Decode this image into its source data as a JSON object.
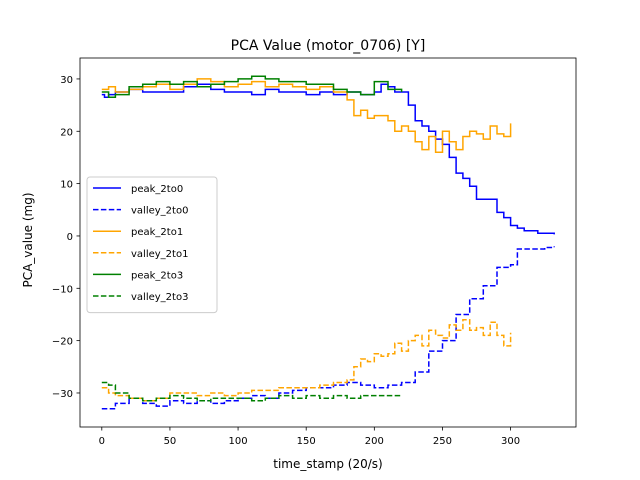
{
  "chart_data": {
    "type": "line",
    "title": "PCA Value (motor_0706) [Y]",
    "xlabel": "time_stamp (20/s)",
    "ylabel": "PCA_value (mg)",
    "xlim": [
      -16,
      348
    ],
    "ylim": [
      -36.5,
      34
    ],
    "xticks": [
      0,
      50,
      100,
      150,
      200,
      250,
      300
    ],
    "yticks": [
      -30,
      -20,
      -10,
      0,
      10,
      20,
      30
    ],
    "legend_position": "center-left",
    "series": [
      {
        "name": "peak_2to0",
        "color": "#0000ff",
        "dash": false,
        "points": [
          [
            0,
            27
          ],
          [
            2,
            26.5
          ],
          [
            5,
            27
          ],
          [
            10,
            27.5
          ],
          [
            20,
            28
          ],
          [
            30,
            27.5
          ],
          [
            40,
            27.5
          ],
          [
            50,
            27.5
          ],
          [
            60,
            28.5
          ],
          [
            70,
            29
          ],
          [
            80,
            28
          ],
          [
            90,
            27.5
          ],
          [
            100,
            27.5
          ],
          [
            110,
            27
          ],
          [
            120,
            28
          ],
          [
            130,
            27.5
          ],
          [
            140,
            27.5
          ],
          [
            150,
            27
          ],
          [
            160,
            27.5
          ],
          [
            170,
            27
          ],
          [
            180,
            27.5
          ],
          [
            190,
            27
          ],
          [
            200,
            27.5
          ],
          [
            205,
            29
          ],
          [
            210,
            28.5
          ],
          [
            215,
            27.5
          ],
          [
            220,
            27.5
          ],
          [
            225,
            25
          ],
          [
            230,
            22
          ],
          [
            235,
            21
          ],
          [
            240,
            20
          ],
          [
            245,
            18.5
          ],
          [
            250,
            17.5
          ],
          [
            255,
            15
          ],
          [
            260,
            12
          ],
          [
            265,
            11
          ],
          [
            270,
            9.5
          ],
          [
            275,
            7
          ],
          [
            285,
            7
          ],
          [
            290,
            4.5
          ],
          [
            295,
            3.5
          ],
          [
            300,
            2
          ],
          [
            305,
            1.5
          ],
          [
            310,
            1
          ],
          [
            320,
            0.5
          ],
          [
            332,
            0.3
          ]
        ]
      },
      {
        "name": "valley_2to0",
        "color": "#0000ff",
        "dash": true,
        "points": [
          [
            0,
            -33
          ],
          [
            5,
            -33
          ],
          [
            10,
            -32
          ],
          [
            20,
            -31
          ],
          [
            30,
            -32
          ],
          [
            40,
            -32.5
          ],
          [
            50,
            -31.5
          ],
          [
            60,
            -32
          ],
          [
            70,
            -31.5
          ],
          [
            80,
            -32
          ],
          [
            90,
            -31.5
          ],
          [
            100,
            -31
          ],
          [
            110,
            -30.5
          ],
          [
            120,
            -31
          ],
          [
            130,
            -30
          ],
          [
            140,
            -29.5
          ],
          [
            150,
            -29
          ],
          [
            160,
            -29
          ],
          [
            170,
            -28.5
          ],
          [
            180,
            -28
          ],
          [
            190,
            -28.5
          ],
          [
            200,
            -29
          ],
          [
            210,
            -28.5
          ],
          [
            220,
            -28
          ],
          [
            230,
            -26
          ],
          [
            240,
            -22
          ],
          [
            250,
            -20
          ],
          [
            260,
            -15
          ],
          [
            270,
            -12
          ],
          [
            280,
            -9.5
          ],
          [
            290,
            -6
          ],
          [
            300,
            -5.5
          ],
          [
            305,
            -2.5
          ],
          [
            315,
            -2.5
          ],
          [
            325,
            -2.2
          ],
          [
            332,
            -2
          ]
        ]
      },
      {
        "name": "peak_2to1",
        "color": "#ffa500",
        "dash": false,
        "points": [
          [
            0,
            28
          ],
          [
            5,
            28.5
          ],
          [
            10,
            27.5
          ],
          [
            20,
            28
          ],
          [
            30,
            28.5
          ],
          [
            40,
            29
          ],
          [
            50,
            28
          ],
          [
            60,
            29
          ],
          [
            70,
            30
          ],
          [
            80,
            29.5
          ],
          [
            90,
            28.5
          ],
          [
            100,
            29
          ],
          [
            110,
            29.5
          ],
          [
            120,
            28.5
          ],
          [
            130,
            29
          ],
          [
            140,
            28.5
          ],
          [
            150,
            28
          ],
          [
            160,
            28.5
          ],
          [
            170,
            27.5
          ],
          [
            180,
            26
          ],
          [
            185,
            23
          ],
          [
            190,
            24
          ],
          [
            195,
            22.5
          ],
          [
            200,
            23
          ],
          [
            210,
            22
          ],
          [
            215,
            20
          ],
          [
            220,
            21
          ],
          [
            225,
            20
          ],
          [
            230,
            18
          ],
          [
            235,
            16.5
          ],
          [
            240,
            19
          ],
          [
            245,
            16
          ],
          [
            250,
            20
          ],
          [
            255,
            18
          ],
          [
            260,
            16.5
          ],
          [
            265,
            19
          ],
          [
            270,
            20
          ],
          [
            275,
            19.5
          ],
          [
            280,
            18.5
          ],
          [
            285,
            21
          ],
          [
            290,
            19.5
          ],
          [
            295,
            19
          ],
          [
            300,
            21.5
          ]
        ]
      },
      {
        "name": "valley_2to1",
        "color": "#ffa500",
        "dash": true,
        "points": [
          [
            0,
            -29
          ],
          [
            5,
            -30
          ],
          [
            10,
            -30.5
          ],
          [
            20,
            -31
          ],
          [
            30,
            -31.5
          ],
          [
            40,
            -31
          ],
          [
            50,
            -30
          ],
          [
            60,
            -30
          ],
          [
            70,
            -30.5
          ],
          [
            80,
            -30
          ],
          [
            90,
            -30.5
          ],
          [
            100,
            -30
          ],
          [
            110,
            -29.5
          ],
          [
            120,
            -29.5
          ],
          [
            130,
            -29
          ],
          [
            140,
            -29
          ],
          [
            150,
            -29
          ],
          [
            160,
            -28.5
          ],
          [
            170,
            -28
          ],
          [
            180,
            -27.5
          ],
          [
            185,
            -25
          ],
          [
            190,
            -23.5
          ],
          [
            195,
            -24
          ],
          [
            200,
            -22.5
          ],
          [
            205,
            -23
          ],
          [
            210,
            -22.5
          ],
          [
            215,
            -20.5
          ],
          [
            220,
            -22
          ],
          [
            225,
            -20
          ],
          [
            230,
            -19
          ],
          [
            235,
            -21
          ],
          [
            240,
            -18
          ],
          [
            245,
            -19
          ],
          [
            250,
            -19.5
          ],
          [
            255,
            -17
          ],
          [
            260,
            -18
          ],
          [
            265,
            -16
          ],
          [
            270,
            -18
          ],
          [
            275,
            -17.5
          ],
          [
            280,
            -19
          ],
          [
            285,
            -16.5
          ],
          [
            290,
            -19
          ],
          [
            295,
            -21
          ],
          [
            300,
            -18.5
          ]
        ]
      },
      {
        "name": "peak_2to3",
        "color": "#008000",
        "dash": false,
        "points": [
          [
            0,
            27.5
          ],
          [
            5,
            26.5
          ],
          [
            10,
            27
          ],
          [
            20,
            28.5
          ],
          [
            30,
            29
          ],
          [
            40,
            29.5
          ],
          [
            50,
            29
          ],
          [
            60,
            29.5
          ],
          [
            70,
            28.5
          ],
          [
            80,
            29
          ],
          [
            90,
            29.5
          ],
          [
            100,
            30
          ],
          [
            110,
            30.5
          ],
          [
            120,
            30
          ],
          [
            130,
            29.5
          ],
          [
            140,
            29.5
          ],
          [
            150,
            29
          ],
          [
            160,
            29
          ],
          [
            170,
            28
          ],
          [
            180,
            27.5
          ],
          [
            190,
            27
          ],
          [
            200,
            29.5
          ],
          [
            210,
            28
          ],
          [
            220,
            27.5
          ]
        ]
      },
      {
        "name": "valley_2to3",
        "color": "#008000",
        "dash": true,
        "points": [
          [
            0,
            -28
          ],
          [
            5,
            -28.5
          ],
          [
            10,
            -30
          ],
          [
            20,
            -31
          ],
          [
            30,
            -31.5
          ],
          [
            40,
            -31
          ],
          [
            50,
            -30.5
          ],
          [
            60,
            -31
          ],
          [
            70,
            -31.5
          ],
          [
            80,
            -31
          ],
          [
            90,
            -31
          ],
          [
            100,
            -31
          ],
          [
            110,
            -31.5
          ],
          [
            120,
            -31
          ],
          [
            130,
            -30.5
          ],
          [
            140,
            -31
          ],
          [
            150,
            -30.5
          ],
          [
            160,
            -31
          ],
          [
            170,
            -30.5
          ],
          [
            180,
            -31
          ],
          [
            190,
            -30.5
          ],
          [
            200,
            -30.5
          ],
          [
            210,
            -30.5
          ],
          [
            220,
            -30.5
          ]
        ]
      }
    ]
  }
}
